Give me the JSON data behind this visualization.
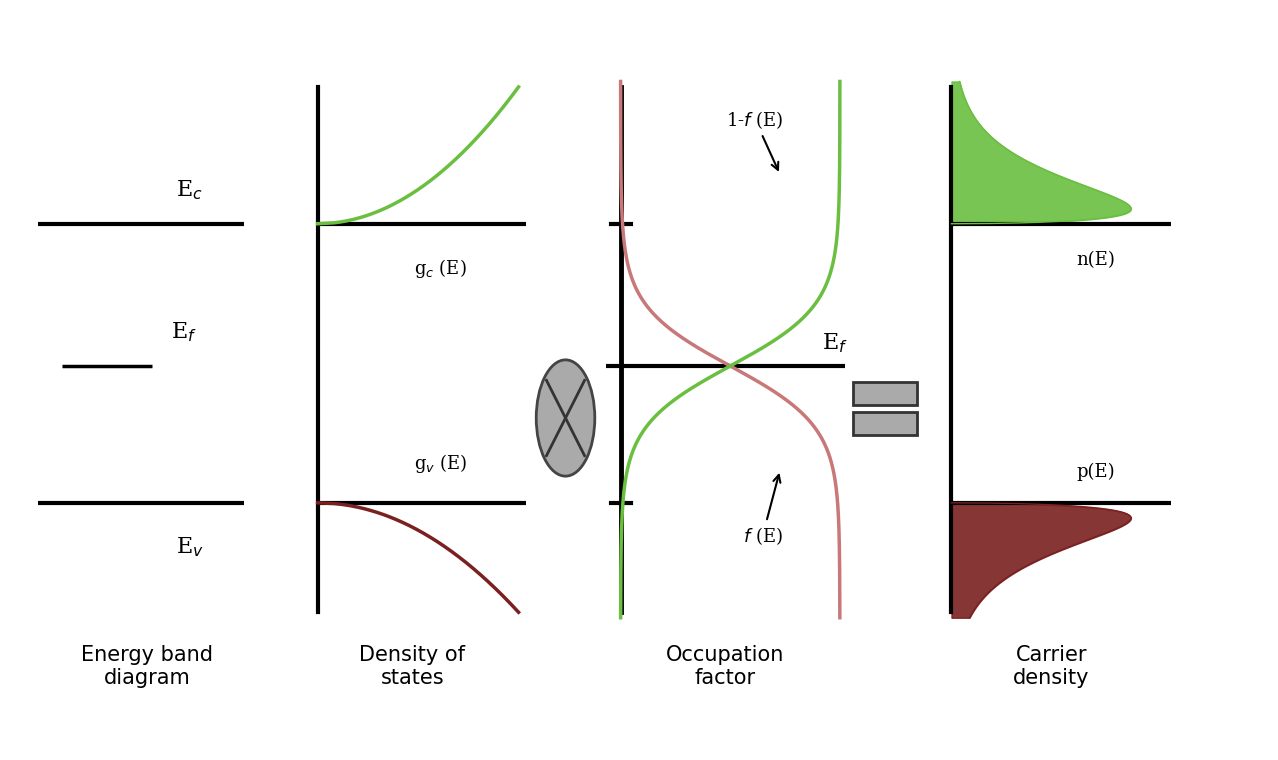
{
  "background_color": "#ffffff",
  "fig_width": 12.78,
  "fig_height": 7.6,
  "energy_levels": {
    "Ec": 0.73,
    "Ef": 0.47,
    "Ev": 0.22
  },
  "colors": {
    "green": "#6abf40",
    "red_brown": "#7a2020",
    "pink": "#c87878",
    "black": "#000000",
    "gray": "#888888"
  },
  "labels": {
    "panel1": "Energy band\ndiagram",
    "panel2": "Density of\nstates",
    "panel3": "Occupation\nfactor",
    "panel4": "Carrier\ndensity",
    "Ec": "E$_c$",
    "Ef_band": "E$_f$",
    "Ev": "E$_v$",
    "gc": "g$_c$ (E)",
    "gv": "g$_v$ (E)",
    "nE": "n(E)",
    "pE": "p(E)",
    "one_minus_f": "1-f (E)",
    "f_of_E": "f (E)",
    "Ef_occ": "E$_f$"
  },
  "kT": 0.055,
  "font_size_labels": 16,
  "font_size_panel": 15,
  "font_size_axis_label": 13
}
